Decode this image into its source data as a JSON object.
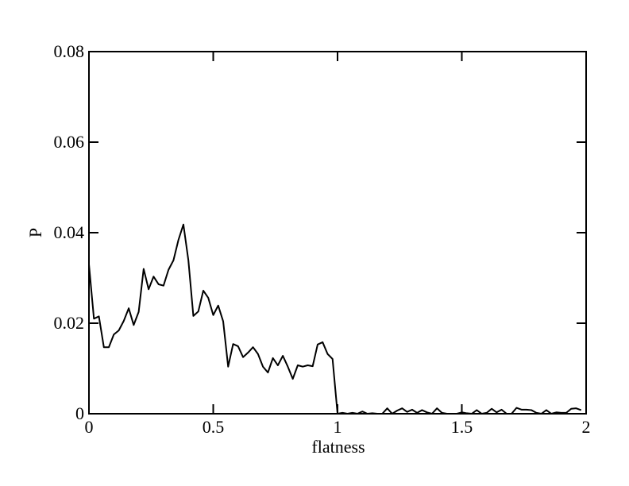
{
  "chart_data": {
    "type": "line",
    "xlabel": "flatness",
    "ylabel": "P",
    "xlim": [
      0,
      2
    ],
    "ylim": [
      0,
      0.08
    ],
    "xticks": [
      0,
      0.5,
      1,
      1.5,
      2
    ],
    "yticks": [
      0,
      0.02,
      0.04,
      0.06,
      0.08
    ],
    "series": [
      {
        "color": "#000000",
        "x": [
          0,
          0.02,
          0.04,
          0.06,
          0.08,
          0.1,
          0.12,
          0.14,
          0.16,
          0.18,
          0.2,
          0.22,
          0.24,
          0.26,
          0.28,
          0.3,
          0.32,
          0.34,
          0.36,
          0.38,
          0.4,
          0.42,
          0.44,
          0.46,
          0.48,
          0.5,
          0.52,
          0.54,
          0.56,
          0.58,
          0.6,
          0.62,
          0.64,
          0.66,
          0.68,
          0.7,
          0.72,
          0.74,
          0.76,
          0.78,
          0.8,
          0.82,
          0.84,
          0.86,
          0.88,
          0.9,
          0.92,
          0.94,
          0.96,
          0.98,
          1,
          1.02,
          1.04,
          1.06,
          1.08,
          1.1,
          1.12,
          1.14,
          1.16,
          1.18,
          1.2,
          1.22,
          1.24,
          1.26,
          1.28,
          1.3,
          1.32,
          1.34,
          1.36,
          1.38,
          1.4,
          1.42,
          1.44,
          1.46,
          1.48,
          1.5,
          1.52,
          1.54,
          1.56,
          1.58,
          1.6,
          1.62,
          1.64,
          1.66,
          1.68,
          1.7,
          1.72,
          1.74,
          1.76,
          1.78,
          1.8,
          1.82,
          1.84,
          1.86,
          1.88,
          1.9,
          1.92,
          1.94,
          1.96,
          1.98
        ],
        "values": [
          0.033,
          0.021,
          0.0215,
          0.0147,
          0.0147,
          0.0175,
          0.0184,
          0.0205,
          0.0233,
          0.0196,
          0.0225,
          0.032,
          0.0275,
          0.0303,
          0.0286,
          0.0283,
          0.0318,
          0.0339,
          0.0384,
          0.0418,
          0.0339,
          0.0216,
          0.0226,
          0.0272,
          0.0256,
          0.0218,
          0.0239,
          0.0204,
          0.0104,
          0.0154,
          0.0149,
          0.0125,
          0.0135,
          0.0147,
          0.0132,
          0.0104,
          0.0091,
          0.0123,
          0.0107,
          0.0128,
          0.0104,
          0.0077,
          0.0107,
          0.0104,
          0.0107,
          0.0105,
          0.0153,
          0.0158,
          0.0132,
          0.0121,
          0,
          0.0002,
          0,
          0.0002,
          0,
          0.0005,
          0,
          0.0001,
          0,
          0,
          0.0012,
          0,
          0.0007,
          0.0012,
          0.0004,
          0.0009,
          0.0002,
          0.0008,
          0.0003,
          0,
          0.0012,
          0.0002,
          0,
          0,
          0,
          0.0003,
          0.0001,
          0,
          0.0008,
          0,
          0.0002,
          0.0011,
          0.0003,
          0.0009,
          0,
          0,
          0.0013,
          0.0009,
          0.0009,
          0.0008,
          0.0002,
          0,
          0.0008,
          0,
          0.0003,
          0.0002,
          0.0002,
          0.0011,
          0.0012,
          0.0008
        ]
      }
    ]
  }
}
